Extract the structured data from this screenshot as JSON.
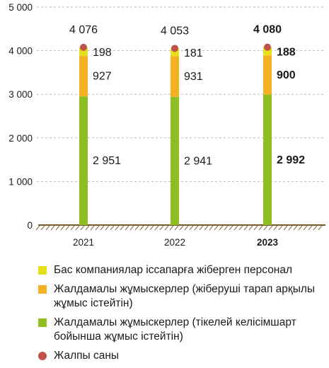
{
  "chart_data": {
    "type": "bar",
    "stacked": true,
    "categories": [
      "2021",
      "2022",
      "2023"
    ],
    "highlight_category": "2023",
    "ylim": [
      0,
      5000
    ],
    "yticks": [
      0,
      1000,
      2000,
      3000,
      4000,
      5000
    ],
    "ytick_labels": [
      "0",
      "1 000",
      "2 000",
      "3 000",
      "4 000",
      "5 000"
    ],
    "series": [
      {
        "name": "Жалдамалы жұмыскерлер (тікелей келісімшарт бойынша жұмыс істейтін)",
        "color": "#8cbf1f",
        "values": [
          2951,
          2941,
          2992
        ],
        "labels": [
          "2 951",
          "2 941",
          "2 992"
        ]
      },
      {
        "name": "Жалдамалы жұмыскерлер (жіберуші тарап арқылы жұмыс істейтін)",
        "color": "#f4b223",
        "values": [
          927,
          931,
          900
        ],
        "labels": [
          "927",
          "931",
          "900"
        ]
      },
      {
        "name": "Бас компаниялар іссапарға жіберген персонал",
        "color": "#e6e01c",
        "values": [
          198,
          181,
          188
        ],
        "labels": [
          "198",
          "181",
          "188"
        ]
      }
    ],
    "totals": {
      "name": "Жалпы саны",
      "color": "#c0524a",
      "values": [
        4076,
        4053,
        4080
      ],
      "labels": [
        "4 076",
        "4 053",
        "4 080"
      ]
    }
  },
  "legend": [
    {
      "label": "Бас компаниялар іссапарға жіберген персонал",
      "color": "#e6e01c",
      "shape": "square"
    },
    {
      "label": "Жалдамалы жұмыскерлер (жіберуші тарап арқылы жұмыс істейтін)",
      "color": "#f4b223",
      "shape": "square"
    },
    {
      "label": "Жалдамалы жұмыскерлер (тікелей келісімшарт бойынша жұмыс істейтін)",
      "color": "#8cbf1f",
      "shape": "square"
    },
    {
      "label": "Жалпы саны",
      "color": "#c0524a",
      "shape": "circle"
    }
  ]
}
